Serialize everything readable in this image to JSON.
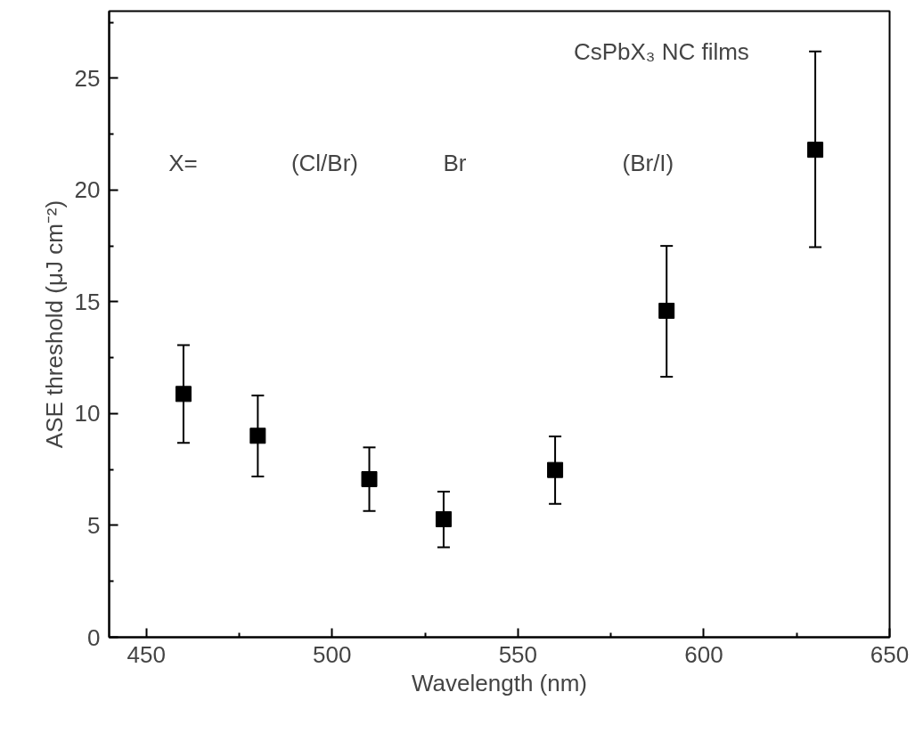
{
  "chart_data": {
    "type": "scatter",
    "xlabel": "Wavelength (nm)",
    "ylabel": "ASE threshold (μJ cm⁻²)",
    "x": [
      460,
      480,
      510,
      530,
      560,
      590,
      630
    ],
    "series": [
      {
        "color": "#000000",
        "values": [
          10.88,
          9.01,
          7.07,
          5.28,
          7.48,
          14.6,
          21.8
        ],
        "errors": [
          [
            8.69,
            13.06
          ],
          [
            7.19,
            10.81
          ],
          [
            5.65,
            8.49
          ],
          [
            4.02,
            6.51
          ],
          [
            5.96,
            8.98
          ],
          [
            11.65,
            17.5
          ],
          [
            17.45,
            26.2
          ]
        ]
      }
    ],
    "marker": "square",
    "xlim": [
      440,
      650
    ],
    "xticks": [
      450,
      500,
      550,
      600,
      650
    ],
    "ylim": [
      0,
      28
    ],
    "yticks": [
      0,
      5,
      10,
      15,
      20,
      25
    ],
    "annotations": [
      "CsPbX₃ NC films",
      "X=",
      "(Cl/Br)",
      "Br",
      "(Br/I)"
    ],
    "grid": false
  }
}
